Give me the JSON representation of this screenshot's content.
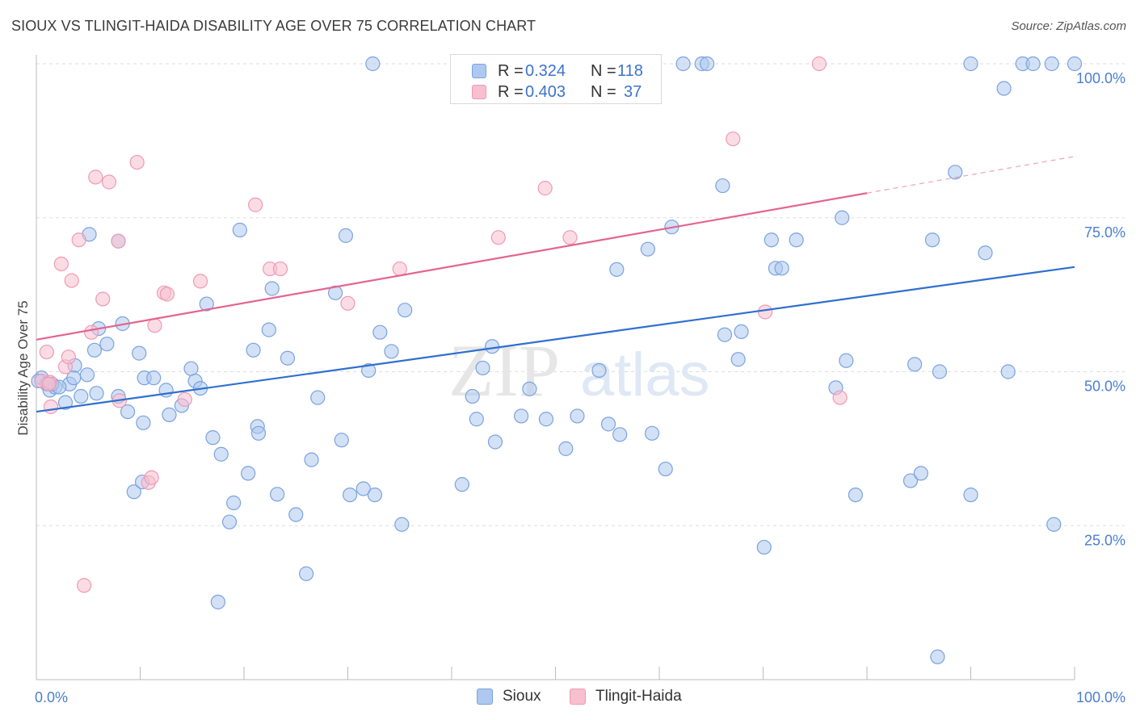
{
  "title": "SIOUX VS TLINGIT-HAIDA DISABILITY AGE OVER 75 CORRELATION CHART",
  "source": "Source: ZipAtlas.com",
  "watermark": {
    "zip": "ZIP",
    "atlas": "atlas"
  },
  "legend": {
    "r_label": "R =",
    "n_label": "N =",
    "rows": [
      {
        "r": "0.324",
        "n": "118"
      },
      {
        "r": "0.403",
        "n": "37"
      }
    ]
  },
  "bottom_legend": [
    "Sioux",
    "Tlingit-Haida"
  ],
  "colors": {
    "sioux_fill": "#aec8ef",
    "sioux_stroke": "#7aa3df",
    "sioux_line": "#2f6fcf",
    "tlingit_fill": "#f7bfd0",
    "tlingit_stroke": "#ef9ab4",
    "tlingit_line": "#e4648f",
    "axis_text": "#4a7fd0",
    "grid": "#dddddd"
  },
  "chart_data": {
    "type": "scatter",
    "title": "SIOUX VS TLINGIT-HAIDA DISABILITY AGE OVER 75 CORRELATION CHART",
    "xlabel": "",
    "ylabel": "Disability Age Over 75",
    "xlim": [
      0,
      100
    ],
    "ylim": [
      0,
      100
    ],
    "x_tick_labels": [
      "0.0%",
      "100.0%"
    ],
    "y_tick_labels": [
      "25.0%",
      "50.0%",
      "75.0%",
      "100.0%"
    ],
    "y_ticks": [
      25,
      50,
      75,
      100
    ],
    "grid": true,
    "legend_position": "top-center",
    "series": [
      {
        "name": "Sioux",
        "r": 0.324,
        "n": 118,
        "trend": {
          "x0": 0,
          "y0": 43.5,
          "x1": 100,
          "y1": 67.0
        },
        "points": [
          [
            0.5,
            49
          ],
          [
            1,
            48
          ],
          [
            1.3,
            47
          ],
          [
            1.8,
            47.5
          ],
          [
            3.2,
            48
          ],
          [
            2.8,
            45
          ],
          [
            4.3,
            46
          ],
          [
            3.7,
            51
          ],
          [
            5.8,
            46.5
          ],
          [
            5.6,
            53.5
          ],
          [
            6.8,
            54.5
          ],
          [
            6,
            57
          ],
          [
            8.3,
            57.8
          ],
          [
            7.9,
            46
          ],
          [
            8.8,
            43.5
          ],
          [
            9.9,
            53
          ],
          [
            10.3,
            41.7
          ],
          [
            10.4,
            49
          ],
          [
            11.3,
            49
          ],
          [
            12.5,
            47
          ],
          [
            12.8,
            43
          ],
          [
            14,
            44.5
          ],
          [
            14.9,
            50.5
          ],
          [
            15.3,
            48.5
          ],
          [
            15.8,
            47.3
          ],
          [
            16.4,
            61
          ],
          [
            17,
            39.3
          ],
          [
            17.8,
            36.6
          ],
          [
            18.6,
            25.6
          ],
          [
            19,
            28.7
          ],
          [
            19.6,
            73
          ],
          [
            20.4,
            33.5
          ],
          [
            20.9,
            53.5
          ],
          [
            21.3,
            41.1
          ],
          [
            21.4,
            40
          ],
          [
            22.4,
            56.8
          ],
          [
            22.7,
            63.5
          ],
          [
            23.2,
            30.1
          ],
          [
            24.2,
            52.2
          ],
          [
            25,
            26.8
          ],
          [
            26,
            17.2
          ],
          [
            26.5,
            35.7
          ],
          [
            27.1,
            45.8
          ],
          [
            28.8,
            62.8
          ],
          [
            29.4,
            38.9
          ],
          [
            29.8,
            72.1
          ],
          [
            30.2,
            30
          ],
          [
            31.5,
            31
          ],
          [
            32,
            50.2
          ],
          [
            32.4,
            100
          ],
          [
            32.6,
            30
          ],
          [
            33.1,
            56.4
          ],
          [
            34.2,
            53.3
          ],
          [
            35.2,
            25.2
          ],
          [
            35.5,
            60
          ],
          [
            41,
            31.7
          ],
          [
            42,
            46
          ],
          [
            42.4,
            42.3
          ],
          [
            43,
            50.6
          ],
          [
            43.9,
            54.1
          ],
          [
            44.2,
            38.6
          ],
          [
            44.8,
            100
          ],
          [
            46.7,
            42.8
          ],
          [
            47.5,
            47.2
          ],
          [
            49.1,
            42.3
          ],
          [
            51,
            37.5
          ],
          [
            52.1,
            42.8
          ],
          [
            54.2,
            50.2
          ],
          [
            55.1,
            41.5
          ],
          [
            55.9,
            66.6
          ],
          [
            56.2,
            39.8
          ],
          [
            58.9,
            69.9
          ],
          [
            59.3,
            40
          ],
          [
            60.6,
            34.2
          ],
          [
            61.2,
            73.5
          ],
          [
            62.3,
            100
          ],
          [
            64.1,
            100
          ],
          [
            64.6,
            100
          ],
          [
            66.1,
            80.2
          ],
          [
            66.3,
            56
          ],
          [
            67.6,
            52
          ],
          [
            67.9,
            56.5
          ],
          [
            70.1,
            21.5
          ],
          [
            70.8,
            71.4
          ],
          [
            71.2,
            66.8
          ],
          [
            71.8,
            66.8
          ],
          [
            73.2,
            71.4
          ],
          [
            77,
            47.4
          ],
          [
            77.6,
            75
          ],
          [
            78,
            51.8
          ],
          [
            78.9,
            30
          ],
          [
            84.2,
            32.3
          ],
          [
            85.2,
            33.5
          ],
          [
            84.6,
            51.2
          ],
          [
            86.3,
            71.4
          ],
          [
            86.8,
            3.7
          ],
          [
            87,
            50
          ],
          [
            88.5,
            82.4
          ],
          [
            90,
            30
          ],
          [
            90,
            100
          ],
          [
            91.4,
            69.3
          ],
          [
            93.2,
            96
          ],
          [
            93.6,
            50
          ],
          [
            95,
            100
          ],
          [
            96,
            100
          ],
          [
            98,
            25.2
          ],
          [
            97.8,
            100
          ],
          [
            100,
            100
          ],
          [
            0.2,
            48.5
          ],
          [
            1.5,
            48
          ],
          [
            2.2,
            47.5
          ],
          [
            3.6,
            49
          ],
          [
            4.9,
            49.5
          ],
          [
            5.1,
            72.3
          ],
          [
            7.9,
            71.2
          ],
          [
            9.4,
            30.5
          ],
          [
            10.2,
            32.1
          ],
          [
            17.5,
            12.6
          ]
        ]
      },
      {
        "name": "Tlingit-Haida",
        "r": 0.403,
        "n": 37,
        "trend": {
          "x0": 0,
          "y0": 55.2,
          "x1": 80,
          "y1": 79.0
        },
        "points": [
          [
            0.5,
            48.5
          ],
          [
            1.3,
            48.3
          ],
          [
            1,
            53.2
          ],
          [
            1.4,
            44.3
          ],
          [
            2.4,
            67.5
          ],
          [
            2.8,
            50.8
          ],
          [
            3.1,
            52.4
          ],
          [
            3.4,
            64.8
          ],
          [
            4.1,
            71.4
          ],
          [
            5.3,
            56.4
          ],
          [
            5.7,
            81.6
          ],
          [
            6.4,
            61.8
          ],
          [
            7,
            80.8
          ],
          [
            7.9,
            71.2
          ],
          [
            8,
            45.3
          ],
          [
            9.7,
            84
          ],
          [
            10.8,
            32
          ],
          [
            11.1,
            32.8
          ],
          [
            11.4,
            57.5
          ],
          [
            12.3,
            62.8
          ],
          [
            12.6,
            62.6
          ],
          [
            14.3,
            45.5
          ],
          [
            15.8,
            64.7
          ],
          [
            21.1,
            77.1
          ],
          [
            22.5,
            66.7
          ],
          [
            23.5,
            66.7
          ],
          [
            30,
            61.1
          ],
          [
            35,
            66.7
          ],
          [
            44.5,
            71.8
          ],
          [
            49,
            79.8
          ],
          [
            51.4,
            71.8
          ],
          [
            67.1,
            87.8
          ],
          [
            70.2,
            59.7
          ],
          [
            75.4,
            100
          ],
          [
            77.4,
            45.8
          ],
          [
            4.6,
            15.3
          ],
          [
            1.2,
            48
          ]
        ]
      }
    ]
  }
}
